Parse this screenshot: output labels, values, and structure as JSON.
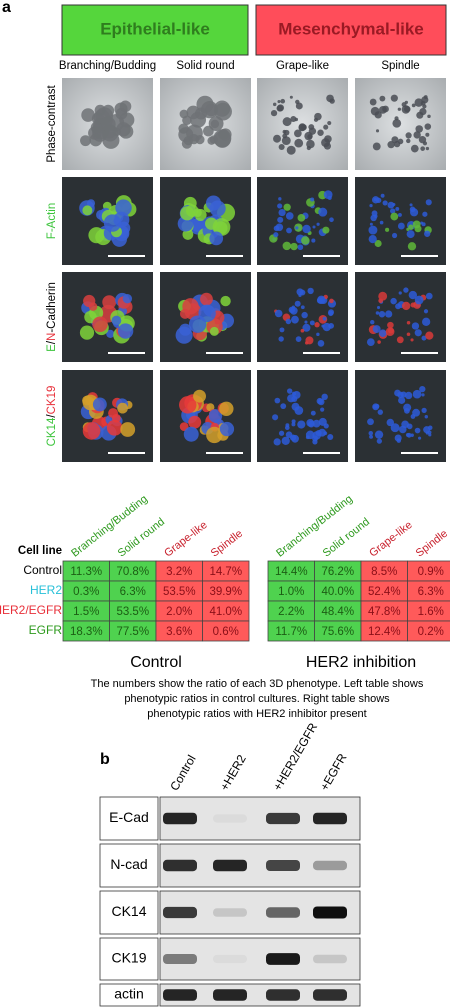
{
  "panel_a": {
    "label": "a",
    "groups": [
      "Epithelial-like",
      "Mesenchymal-like"
    ],
    "phenotypes": [
      "Branching/Budding",
      "Solid round",
      "Grape-like",
      "Spindle"
    ],
    "image_rows": [
      [
        "Phase-contrast"
      ],
      [
        "F-Actin"
      ],
      [
        "E",
        "/",
        "N",
        "-Cadherin"
      ],
      [
        "CK14",
        "/",
        "CK19"
      ]
    ],
    "table_headers": [
      "Branching/Budding",
      "Solid round",
      "Grape-like",
      "Spindle"
    ],
    "cell_line_label": "Cell line",
    "cell_lines": [
      "Control",
      "HER2",
      "HER2/EGFR",
      "EGFR"
    ],
    "tables": [
      {
        "title": "Control",
        "rows": [
          [
            "11.3%",
            "70.8%",
            "3.2%",
            "14.7%"
          ],
          [
            "0.3%",
            "6.3%",
            "53.5%",
            "39.9%"
          ],
          [
            "1.5%",
            "53.5%",
            "2.0%",
            "41.0%"
          ],
          [
            "18.3%",
            "77.5%",
            "3.6%",
            "0.6%"
          ]
        ]
      },
      {
        "title": "HER2 inhibition",
        "rows": [
          [
            "14.4%",
            "76.2%",
            "8.5%",
            "0.9%"
          ],
          [
            "1.0%",
            "40.0%",
            "52.4%",
            "6.3%"
          ],
          [
            "2.2%",
            "48.4%",
            "47.8%",
            "1.6%"
          ],
          [
            "11.7%",
            "75.6%",
            "12.4%",
            "0.2%"
          ]
        ]
      }
    ],
    "caption": [
      "The numbers show the ratio of each 3D phenotype. Left table shows",
      "phenotypic ratios in control cultures. Right table shows",
      "phenotypic ratios with HER2 inhibitor present"
    ]
  },
  "panel_b": {
    "label": "b",
    "lanes": [
      "Control",
      "+HER2",
      "+HER2/EGFR",
      "+EGFR"
    ],
    "rows": [
      "E-Cad",
      "N-cad",
      "CK14",
      "CK19",
      "actin"
    ]
  }
}
